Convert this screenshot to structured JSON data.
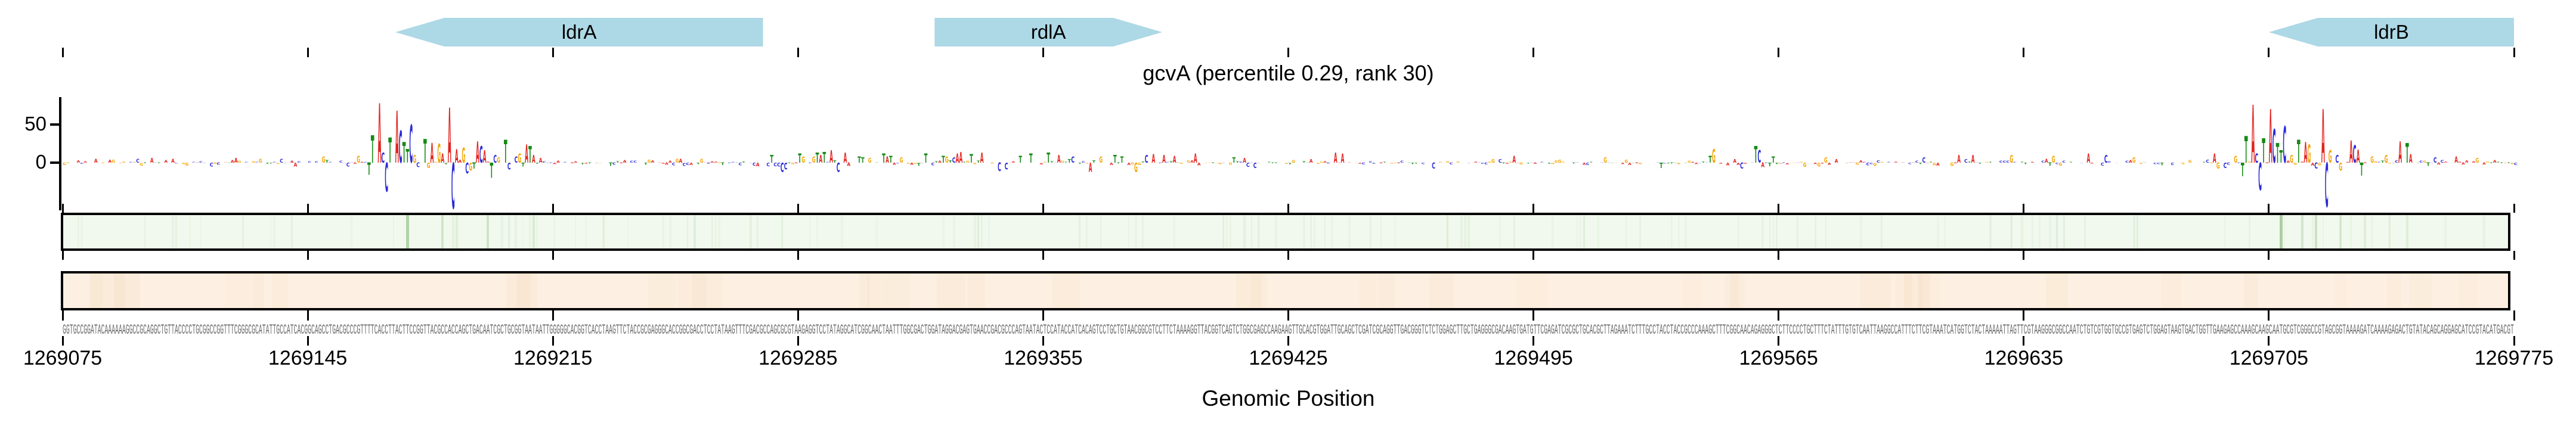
{
  "chart_data": {
    "type": "genomic-saliency-tracks",
    "title": "gcvA (percentile 0.29, rank 30)",
    "xlabel": "Genomic Position",
    "x_range": [
      1269075,
      1269775
    ],
    "x_ticks": [
      "1269075",
      "1269145",
      "1269215",
      "1269285",
      "1269355",
      "1269425",
      "1269495",
      "1269565",
      "1269635",
      "1269705",
      "1269775"
    ],
    "y_axis": {
      "ticks": [
        {
          "value": 50,
          "label": "50"
        },
        {
          "value": 0,
          "label": "0"
        }
      ],
      "range": [
        -70,
        85
      ]
    },
    "genes": [
      {
        "name": "ldrA",
        "start": 1269170,
        "end": 1269275,
        "strand": "-",
        "color": "#add8e6"
      },
      {
        "name": "rdlA",
        "start": 1269324,
        "end": 1269389,
        "strand": "+",
        "color": "#add8e6"
      },
      {
        "name": "ldrB",
        "start": 1269705,
        "end": 1269775,
        "strand": "-",
        "color": "#add8e6"
      }
    ],
    "letter_colors": {
      "A": "#e3231e",
      "C": "#2a2ad6",
      "G": "#f5a300",
      "T": "#158a15"
    },
    "saliency_peaks": [
      [
        1269084,
        "A",
        5
      ],
      [
        1269089,
        "G",
        4
      ],
      [
        1269096,
        "C",
        5
      ],
      [
        1269100,
        "A",
        6
      ],
      [
        1269106,
        "A",
        5
      ],
      [
        1269110,
        "G",
        -4
      ],
      [
        1269117,
        "C",
        -5
      ],
      [
        1269124,
        "A",
        6
      ],
      [
        1269131,
        "G",
        5
      ],
      [
        1269137,
        "C",
        5
      ],
      [
        1269141,
        "A",
        -5
      ],
      [
        1269149,
        "G",
        8
      ],
      [
        1269156,
        "C",
        -5
      ],
      [
        1269159,
        "G",
        9
      ],
      [
        1269162,
        "T",
        -16
      ],
      [
        1269163,
        "T",
        36
      ],
      [
        1269165,
        "A",
        78
      ],
      [
        1269166,
        "C",
        13
      ],
      [
        1269167,
        "C",
        -38
      ],
      [
        1269168,
        "T",
        33
      ],
      [
        1269170,
        "A",
        68
      ],
      [
        1269171,
        "C",
        42
      ],
      [
        1269172,
        "T",
        27
      ],
      [
        1269173,
        "T",
        18
      ],
      [
        1269174,
        "C",
        50
      ],
      [
        1269175,
        "G",
        10
      ],
      [
        1269176,
        "C",
        -6
      ],
      [
        1269178,
        "T",
        31
      ],
      [
        1269179,
        "G",
        -7
      ],
      [
        1269180,
        "A",
        26
      ],
      [
        1269182,
        "G",
        25
      ],
      [
        1269183,
        "A",
        12
      ],
      [
        1269185,
        "A",
        72
      ],
      [
        1269186,
        "C",
        -60
      ],
      [
        1269187,
        "A",
        18
      ],
      [
        1269189,
        "G",
        20
      ],
      [
        1269190,
        "C",
        -14
      ],
      [
        1269191,
        "G",
        -10
      ],
      [
        1269192,
        "T",
        -8
      ],
      [
        1269193,
        "A",
        28
      ],
      [
        1269194,
        "C",
        22
      ],
      [
        1269195,
        "A",
        16
      ],
      [
        1269197,
        "T",
        -20
      ],
      [
        1269198,
        "C",
        10
      ],
      [
        1269199,
        "G",
        7
      ],
      [
        1269201,
        "T",
        30
      ],
      [
        1269202,
        "C",
        -9
      ],
      [
        1269204,
        "C",
        8
      ],
      [
        1269205,
        "G",
        12
      ],
      [
        1269206,
        "T",
        -5
      ],
      [
        1269207,
        "A",
        24
      ],
      [
        1269208,
        "T",
        22
      ],
      [
        1269209,
        "A",
        10
      ],
      [
        1269211,
        "A",
        6
      ],
      [
        1269277,
        "T",
        10
      ],
      [
        1269280,
        "C",
        -12
      ],
      [
        1269281,
        "C",
        -9
      ],
      [
        1269285,
        "T",
        12
      ],
      [
        1269286,
        "G",
        8
      ],
      [
        1269289,
        "G",
        8
      ],
      [
        1269290,
        "T",
        13
      ],
      [
        1269291,
        "A",
        10
      ],
      [
        1269292,
        "T",
        14
      ],
      [
        1269294,
        "A",
        16
      ],
      [
        1269296,
        "C",
        -12
      ],
      [
        1269298,
        "A",
        13
      ],
      [
        1269302,
        "T",
        8
      ],
      [
        1269303,
        "T",
        7
      ],
      [
        1269305,
        "G",
        6
      ],
      [
        1269309,
        "T",
        12
      ],
      [
        1269310,
        "A",
        8
      ],
      [
        1269311,
        "T",
        9
      ],
      [
        1269314,
        "G",
        7
      ],
      [
        1269321,
        "T",
        12
      ],
      [
        1269326,
        "T",
        9
      ],
      [
        1269327,
        "G",
        8
      ],
      [
        1269329,
        "C",
        7
      ],
      [
        1269330,
        "A",
        12
      ],
      [
        1269331,
        "A",
        14
      ],
      [
        1269334,
        "T",
        11
      ],
      [
        1269337,
        "A",
        13
      ],
      [
        1269342,
        "C",
        -11
      ],
      [
        1269344,
        "C",
        -9
      ],
      [
        1269348,
        "T",
        9
      ],
      [
        1269351,
        "T",
        12
      ],
      [
        1269356,
        "T",
        13
      ],
      [
        1269359,
        "A",
        10
      ],
      [
        1269363,
        "C",
        8
      ],
      [
        1269368,
        "A",
        -12
      ],
      [
        1269371,
        "G",
        8
      ],
      [
        1269375,
        "T",
        10
      ],
      [
        1269377,
        "T",
        8
      ],
      [
        1269381,
        "G",
        -12
      ],
      [
        1269384,
        "C",
        10
      ],
      [
        1269386,
        "A",
        11
      ],
      [
        1269389,
        "A",
        10
      ],
      [
        1269392,
        "A",
        9
      ],
      [
        1269398,
        "A",
        12
      ],
      [
        1269409,
        "T",
        7
      ],
      [
        1269412,
        "A",
        6
      ],
      [
        1269415,
        "C",
        -7
      ],
      [
        1269438,
        "A",
        13
      ],
      [
        1269440,
        "A",
        12
      ],
      [
        1269466,
        "C",
        -8
      ],
      [
        1269489,
        "A",
        9
      ],
      [
        1269515,
        "G",
        7
      ],
      [
        1269531,
        "T",
        -7
      ],
      [
        1269545,
        "T",
        9
      ],
      [
        1269546,
        "G",
        18
      ],
      [
        1269554,
        "C",
        -8
      ],
      [
        1269558,
        "T",
        22
      ],
      [
        1269559,
        "C",
        16
      ],
      [
        1269560,
        "A",
        -6
      ],
      [
        1269563,
        "T",
        8
      ],
      [
        1269578,
        "G",
        7
      ],
      [
        1269606,
        "C",
        7
      ],
      [
        1269616,
        "A",
        10
      ],
      [
        1269620,
        "A",
        10
      ],
      [
        1269631,
        "G",
        10
      ],
      [
        1269643,
        "G",
        9
      ],
      [
        1269653,
        "A",
        12
      ],
      [
        1269658,
        "C",
        10
      ],
      [
        1269666,
        "G",
        7
      ],
      [
        1269689,
        "A",
        12
      ],
      [
        1269690,
        "G",
        -8
      ],
      [
        1269692,
        "C",
        -7
      ],
      [
        1269695,
        "G",
        9
      ],
      [
        1269697,
        "T",
        -18
      ],
      [
        1269698,
        "T",
        35
      ],
      [
        1269700,
        "A",
        76
      ],
      [
        1269701,
        "C",
        12
      ],
      [
        1269702,
        "C",
        -36
      ],
      [
        1269703,
        "T",
        32
      ],
      [
        1269705,
        "A",
        70
      ],
      [
        1269706,
        "C",
        44
      ],
      [
        1269707,
        "T",
        26
      ],
      [
        1269708,
        "T",
        16
      ],
      [
        1269709,
        "C",
        48
      ],
      [
        1269711,
        "G",
        10
      ],
      [
        1269713,
        "T",
        30
      ],
      [
        1269715,
        "A",
        27
      ],
      [
        1269716,
        "G",
        24
      ],
      [
        1269718,
        "C",
        -8
      ],
      [
        1269720,
        "A",
        70
      ],
      [
        1269721,
        "C",
        -58
      ],
      [
        1269722,
        "G",
        16
      ],
      [
        1269724,
        "C",
        10
      ],
      [
        1269725,
        "G",
        -10
      ],
      [
        1269728,
        "A",
        29
      ],
      [
        1269729,
        "C",
        23
      ],
      [
        1269730,
        "A",
        17
      ],
      [
        1269731,
        "T",
        -17
      ],
      [
        1269734,
        "G",
        8
      ],
      [
        1269738,
        "G",
        10
      ],
      [
        1269742,
        "A",
        28
      ],
      [
        1269744,
        "T",
        26
      ],
      [
        1269745,
        "A",
        11
      ],
      [
        1269752,
        "C",
        7
      ],
      [
        1269758,
        "A",
        8
      ],
      [
        1269764,
        "G",
        6
      ]
    ],
    "green_track_highlights": {
      "strong": [
        1269174,
        1269709
      ],
      "medium": [
        1269184,
        1269197,
        1269715,
        1269719
      ],
      "light": [
        1269188,
        1269210,
        1269726,
        1269733,
        1269745
      ],
      "color": "#7cb46e"
    },
    "sequence": {
      "prefix": "GGTGCCGGATACAAAAAAGGCCGCAGGCTGTTACCCCTGCGGCCGGTTTCGGGCGCATATTGCCATCACGGCAGCCTGACGCCCGTTTTCACCTTACTTCCGGTTACGCCACCAGCTGACAATCGCTGCGGTAATAAT",
      "length": 700
    }
  }
}
